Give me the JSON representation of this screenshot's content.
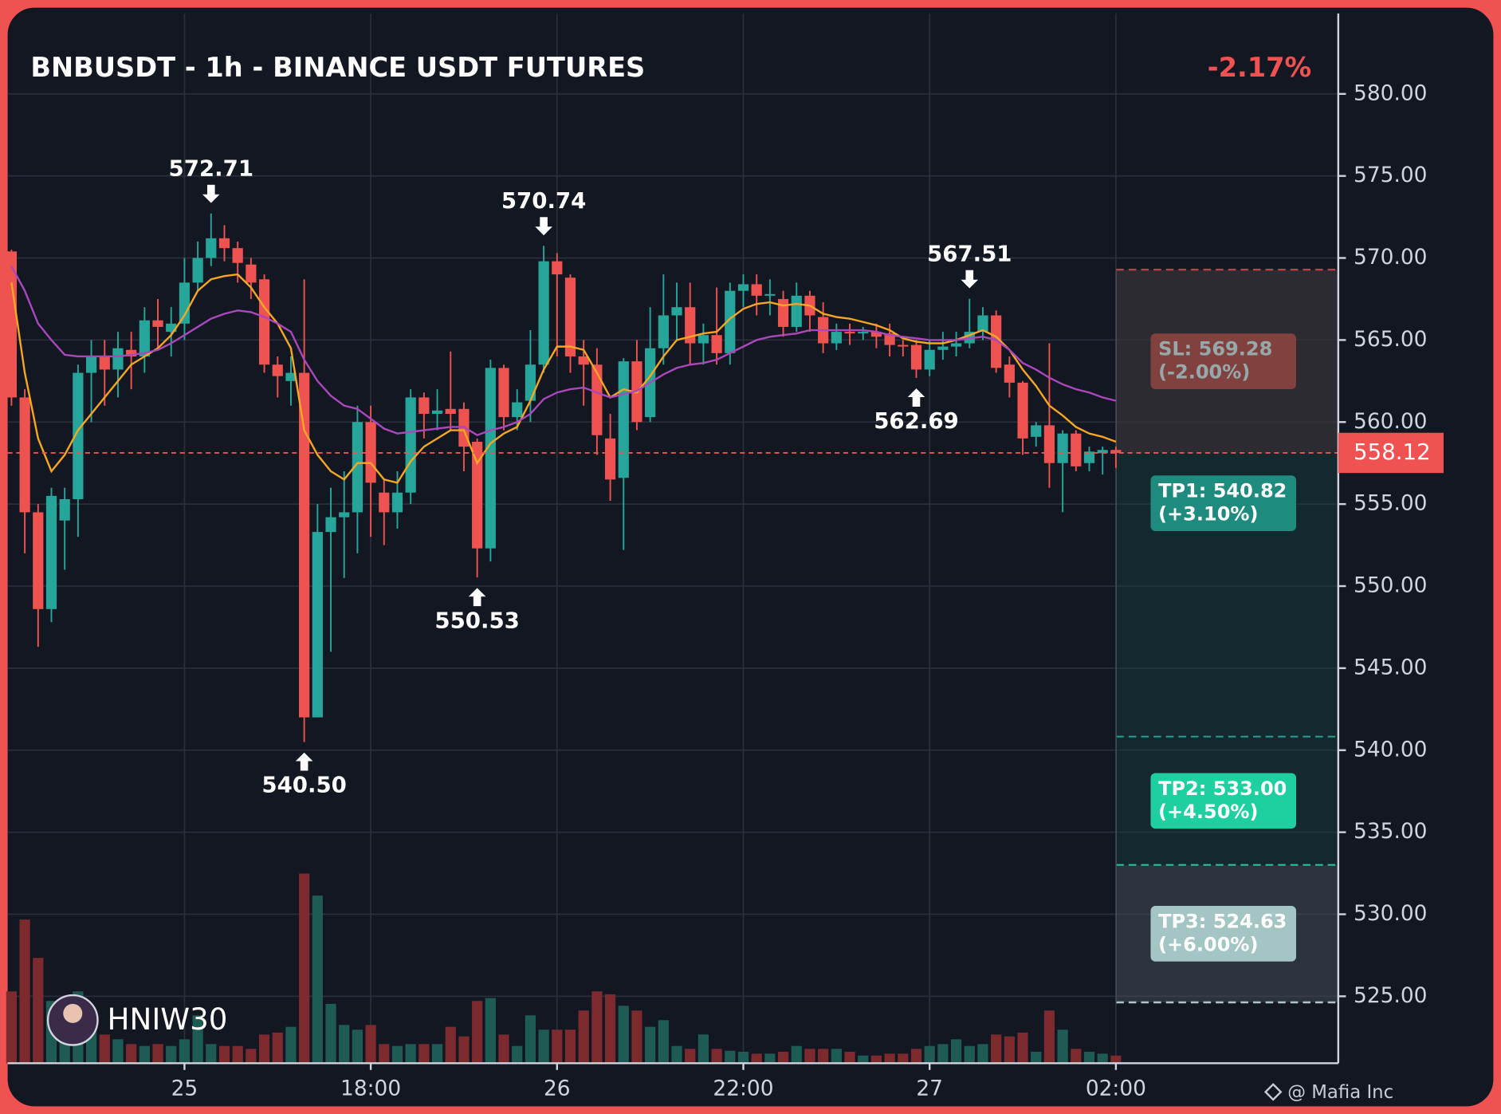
{
  "chart_data": {
    "type": "candlestick",
    "title": "BNBUSDT - 1h - BINANCE USDT FUTURES",
    "change": "-2.17%",
    "categories": [
      null,
      null,
      null,
      null,
      null,
      null,
      null,
      null,
      null,
      null,
      null,
      null,
      null,
      "25",
      null,
      null,
      null,
      null,
      null,
      null,
      null,
      null,
      null,
      null,
      null,
      null,
      null,
      "18:00",
      null,
      null,
      null,
      null,
      null,
      null,
      null,
      null,
      null,
      null,
      null,
      null,
      null,
      "26",
      null,
      null,
      null,
      null,
      null,
      null,
      null,
      null,
      null,
      null,
      null,
      null,
      null,
      "22:00",
      null,
      null,
      null,
      null,
      null,
      null,
      null,
      null,
      null,
      null,
      null,
      null,
      null,
      "27",
      null,
      null,
      null,
      null,
      null,
      null,
      null,
      null,
      null,
      null,
      null,
      null,
      null,
      "02:00"
    ],
    "open": [
      570.4,
      561.5,
      554.5,
      548.6,
      554,
      555.3,
      563,
      564,
      563.2,
      564.4,
      564,
      566.2,
      565.5,
      566,
      568.5,
      570,
      571.2,
      570.6,
      569.6,
      568.7,
      563.5,
      562.5,
      563,
      542,
      553.3,
      554.2,
      554.5,
      560,
      555.7,
      554.5,
      555.7,
      561.5,
      560.5,
      560.8,
      560.8,
      558.8,
      552.3,
      563.3,
      560.3,
      561.3,
      563.5,
      569.8,
      568.8,
      564,
      563.5,
      559,
      556.6,
      563.7,
      560.3,
      564.5,
      566.5,
      567,
      564.8,
      565.3,
      564.2,
      568,
      568.4,
      567.7,
      567.5,
      565.8,
      567.7,
      566.4,
      564.8,
      565.5,
      565.4,
      565.5,
      565.4,
      564.7,
      564.7,
      563.2,
      564.4,
      564.6,
      564.8,
      565.5,
      566.5,
      563.5,
      562.4,
      559.1,
      559.8,
      557.5,
      559.3,
      557.5,
      558.1,
      558.3
    ],
    "high": [
      570.5,
      562,
      555,
      556,
      556,
      563.5,
      565,
      565,
      565.5,
      565.5,
      567,
      567.5,
      567,
      570,
      571,
      572.71,
      572,
      571,
      570,
      569,
      564,
      564,
      568.7,
      555,
      556,
      557,
      561,
      561,
      556.5,
      557,
      562,
      561.8,
      562,
      564.3,
      561.2,
      559,
      563.8,
      563.5,
      562,
      565.6,
      570.74,
      570.3,
      569,
      565,
      564.5,
      560.5,
      563.9,
      565,
      567,
      569,
      568.5,
      568.5,
      566,
      568.2,
      568.5,
      569,
      569,
      568.7,
      568,
      568.5,
      568,
      567.3,
      566,
      566,
      565.8,
      566,
      566,
      565,
      565,
      565,
      565.5,
      565.5,
      567.51,
      567,
      566.8,
      564,
      562.5,
      560,
      564.8,
      559.5,
      559.5,
      558.5,
      558.5,
      558.5
    ],
    "low": [
      561,
      552,
      546.3,
      547.8,
      551,
      553,
      560,
      561,
      561.5,
      562,
      563,
      564.5,
      564,
      565,
      568,
      569.5,
      569.8,
      568.5,
      567.5,
      563,
      561.5,
      561,
      540.5,
      542,
      546,
      550.5,
      552,
      553,
      552.5,
      553.5,
      555,
      559,
      559.5,
      559.5,
      557,
      550.53,
      551.5,
      559.5,
      559.5,
      560,
      563,
      564,
      563,
      561,
      558,
      555.2,
      552.2,
      559.5,
      560,
      563.5,
      565,
      563.5,
      563.5,
      563.5,
      563.5,
      567,
      566.5,
      566.5,
      565.2,
      565.5,
      565.5,
      564.2,
      564.4,
      564.7,
      565,
      564.5,
      564,
      564,
      562.69,
      562.8,
      563.8,
      564,
      564.5,
      565,
      563,
      561.5,
      558,
      558.5,
      556,
      554.5,
      557,
      557,
      556.8,
      557.2
    ],
    "close": [
      561.5,
      554.5,
      548.6,
      555.5,
      555.3,
      563,
      564,
      563.2,
      564.5,
      564,
      566.2,
      565.8,
      566,
      568.5,
      570,
      571.2,
      570.6,
      569.7,
      568.5,
      563.5,
      562.8,
      563,
      542,
      553.3,
      554.2,
      554.5,
      560,
      556.3,
      554.5,
      555.7,
      561.5,
      560.5,
      560.7,
      560.5,
      558.5,
      552.3,
      563.3,
      560.3,
      561.2,
      563.5,
      569.8,
      569,
      564,
      563.5,
      559.2,
      556.5,
      563.7,
      560,
      564.5,
      566.5,
      567,
      564.8,
      565.3,
      564.2,
      568,
      568.4,
      567.7,
      567.8,
      565.8,
      567.7,
      566.5,
      564.8,
      565.5,
      565.4,
      565.5,
      565.2,
      564.7,
      564.6,
      563.2,
      564.4,
      564.6,
      564.8,
      565.5,
      566.5,
      563.3,
      562.4,
      559,
      559.8,
      557.5,
      559.3,
      557.3,
      558.2,
      558.3,
      558.12
    ],
    "volume": [
      75,
      150,
      110,
      65,
      60,
      75,
      50,
      30,
      25,
      20,
      18,
      20,
      18,
      25,
      50,
      20,
      18,
      18,
      15,
      30,
      32,
      38,
      198,
      175,
      62,
      40,
      35,
      40,
      20,
      18,
      20,
      20,
      20,
      38,
      28,
      65,
      68,
      30,
      18,
      50,
      35,
      35,
      35,
      55,
      75,
      72,
      60,
      55,
      38,
      45,
      18,
      15,
      30,
      15,
      13,
      12,
      10,
      10,
      12,
      18,
      15,
      15,
      15,
      12,
      8,
      8,
      10,
      10,
      15,
      18,
      20,
      25,
      18,
      20,
      30,
      28,
      32,
      12,
      55,
      35,
      15,
      12,
      10,
      8
    ],
    "up_color": "#26a69a",
    "down_color": "#ef5350",
    "volume_up_color": "#1e5b55",
    "volume_down_color": "#7c2a2e",
    "lines": [
      {
        "color": "#f5a623",
        "values": [
          568.5,
          563,
          559,
          557,
          558,
          559.5,
          560.5,
          561.5,
          562.5,
          563.5,
          564,
          564.5,
          565.3,
          566.5,
          568,
          568.7,
          568.9,
          569,
          568.2,
          567,
          566,
          564.5,
          559.5,
          558,
          557,
          556.5,
          557.5,
          557.5,
          556.5,
          556.3,
          557.6,
          558.5,
          559,
          559.5,
          559.5,
          557.5,
          558.7,
          559.3,
          559.7,
          561.3,
          563.2,
          564.6,
          564.6,
          564.4,
          563,
          561.5,
          562,
          561.8,
          562.8,
          564,
          565,
          565.2,
          565.4,
          565.5,
          566.3,
          566.9,
          567.2,
          567.3,
          567.1,
          567.2,
          567.1,
          566.6,
          566.4,
          566.3,
          566.1,
          565.9,
          565.6,
          565.1,
          564.9,
          564.8,
          564.8,
          565,
          565.3,
          565.6,
          565.2,
          564.4,
          563.2,
          562.2,
          561,
          560.4,
          559.7,
          559.3,
          559.1,
          558.8
        ]
      },
      {
        "color": "#ab47bc",
        "values": [
          569.5,
          568,
          566,
          565,
          564.1,
          564,
          564,
          564,
          564,
          564.1,
          564.2,
          564.4,
          564.8,
          565.3,
          565.8,
          566.3,
          566.6,
          566.8,
          566.7,
          566.4,
          566,
          565.5,
          563.8,
          562.5,
          561.6,
          561,
          560.8,
          560.2,
          559.6,
          559.3,
          559.4,
          559.5,
          559.6,
          559.7,
          559.7,
          559.2,
          559.5,
          559.7,
          560,
          560.5,
          561.4,
          561.8,
          562,
          562.1,
          561.8,
          561.5,
          561.7,
          561.9,
          562.4,
          562.9,
          563.3,
          563.5,
          563.6,
          563.8,
          564.2,
          564.6,
          565,
          565.2,
          565.3,
          565.4,
          565.6,
          565.6,
          565.6,
          565.6,
          565.6,
          565.5,
          565.3,
          565.2,
          565.1,
          565,
          565,
          565,
          565.1,
          565.2,
          565,
          564.4,
          563.6,
          563.2,
          562.7,
          562.3,
          562,
          561.8,
          561.5,
          561.3
        ]
      }
    ],
    "ylim": [
      520.92,
      585.14
    ],
    "yticks": [
      {
        "value": 525,
        "label": "525.00"
      },
      {
        "value": 530,
        "label": "530.00"
      },
      {
        "value": 535,
        "label": "535.00"
      },
      {
        "value": 540,
        "label": "540.00"
      },
      {
        "value": 545,
        "label": "545.00"
      },
      {
        "value": 550,
        "label": "550.00"
      },
      {
        "value": 555,
        "label": "555.00"
      },
      {
        "value": 560,
        "label": "560.00"
      },
      {
        "value": 565,
        "label": "565.00"
      },
      {
        "value": 570,
        "label": "570.00"
      },
      {
        "value": 575,
        "label": "575.00"
      },
      {
        "value": 580,
        "label": "580.00"
      }
    ],
    "grid": true,
    "last_price": 558.12,
    "peaks": [
      572.71,
      570.74,
      567.51
    ],
    "troughs": [
      {
        "value": 540.5,
        "label": "540.50"
      },
      550.53,
      562.69
    ],
    "levels": [
      {
        "label": "SL: 569.28",
        "change": "(-2.00%)",
        "value": 569.28,
        "color": "#e04a4a",
        "box_color": "#d9463f",
        "zone_color": "rgba(110,38,44,0.45)"
      },
      {
        "label": "TP1: 540.82",
        "change": "(+3.10%)",
        "value": 540.82,
        "color": "#26a69a",
        "box_color": "#1f8a7e",
        "zone_color": "rgba(22,62,64,0.45)"
      },
      {
        "label": "TP2: 533.00",
        "change": "(+4.50%)",
        "value": 533,
        "color": "#22d3a5",
        "box_color": "#1ecfa0",
        "zone_color": "rgba(22,62,64,0.45)"
      },
      {
        "label": "TP3: 524.63",
        "change": "(+6.00%)",
        "value": 524.63,
        "color": "#b0c4c4",
        "box_color": "#a3c6c4",
        "zone_color": "rgba(70,80,92,0.5)"
      }
    ],
    "author": "HNIW30",
    "footer": "@ Mafia Inc"
  }
}
